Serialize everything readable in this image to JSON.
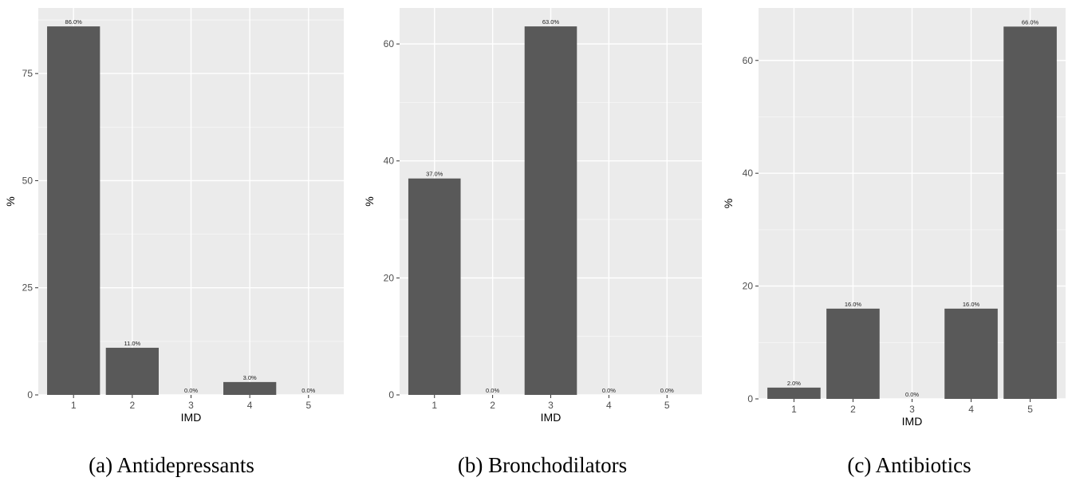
{
  "chart_data": [
    {
      "type": "bar",
      "caption": "(a)  Antidepressants",
      "xlabel": "IMD",
      "ylabel": "%",
      "categories": [
        "1",
        "2",
        "3",
        "4",
        "5"
      ],
      "values": [
        86,
        11,
        0,
        3,
        0
      ],
      "labels": [
        "86.0%",
        "11.0%",
        "0.0%",
        "3.0%",
        "0.0%"
      ],
      "ylim": [
        0,
        90.3
      ],
      "yticks": [
        0,
        25,
        50,
        75
      ],
      "ytick_labels": [
        "0",
        "25",
        "50",
        "75"
      ],
      "grid": true,
      "legend": "none"
    },
    {
      "type": "bar",
      "caption": "(b) Bronchodilators",
      "xlabel": "IMD",
      "ylabel": "%",
      "categories": [
        "1",
        "2",
        "3",
        "4",
        "5"
      ],
      "values": [
        37,
        0,
        63,
        0,
        0
      ],
      "labels": [
        "37.0%",
        "0.0%",
        "63.0%",
        "0.0%",
        "0.0%"
      ],
      "ylim": [
        0,
        66.15
      ],
      "yticks": [
        0,
        20,
        40,
        60
      ],
      "ytick_labels": [
        "0",
        "20",
        "40",
        "60"
      ],
      "grid": true,
      "legend": "none"
    },
    {
      "type": "bar",
      "caption": "(c) Antibiotics",
      "xlabel": "IMD",
      "ylabel": "%",
      "categories": [
        "1",
        "2",
        "3",
        "4",
        "5"
      ],
      "values": [
        2,
        16,
        0,
        16,
        66
      ],
      "labels": [
        "2.0%",
        "16.0%",
        "0.0%",
        "16.0%",
        "66.0%"
      ],
      "ylim": [
        0,
        69.3
      ],
      "yticks": [
        0,
        20,
        40,
        60
      ],
      "ytick_labels": [
        "0",
        "20",
        "40",
        "60"
      ],
      "grid": true,
      "legend": "none"
    }
  ]
}
